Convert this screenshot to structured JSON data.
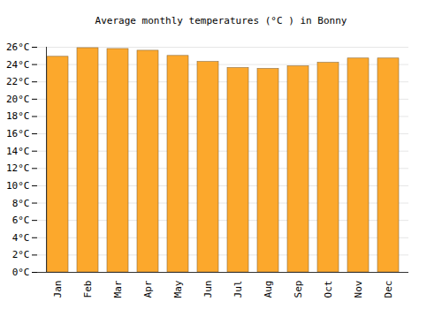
{
  "chart_data": {
    "type": "bar",
    "title": "Average monthly temperatures (°C ) in Bonny",
    "categories": [
      "Jan",
      "Feb",
      "Mar",
      "Apr",
      "May",
      "Jun",
      "Jul",
      "Aug",
      "Sep",
      "Oct",
      "Nov",
      "Dec"
    ],
    "values": [
      24.9,
      25.9,
      25.8,
      25.6,
      25.0,
      24.3,
      23.6,
      23.5,
      23.8,
      24.2,
      24.7,
      24.7
    ],
    "color": "#fca82c",
    "ylim": [
      0,
      26
    ],
    "yticks": [
      {
        "value": 0,
        "label": "0°C"
      },
      {
        "value": 2,
        "label": "2°C"
      },
      {
        "value": 4,
        "label": "4°C"
      },
      {
        "value": 6,
        "label": "6°C"
      },
      {
        "value": 8,
        "label": "8°C"
      },
      {
        "value": 10,
        "label": "10°C"
      },
      {
        "value": 12,
        "label": "12°C"
      },
      {
        "value": 14,
        "label": "14°C"
      },
      {
        "value": 16,
        "label": "16°C"
      },
      {
        "value": 18,
        "label": "18°C"
      },
      {
        "value": 20,
        "label": "20°C"
      },
      {
        "value": 22,
        "label": "22°C"
      },
      {
        "value": 24,
        "label": "24°C"
      },
      {
        "value": 26,
        "label": "26°C"
      }
    ],
    "grid": true
  }
}
